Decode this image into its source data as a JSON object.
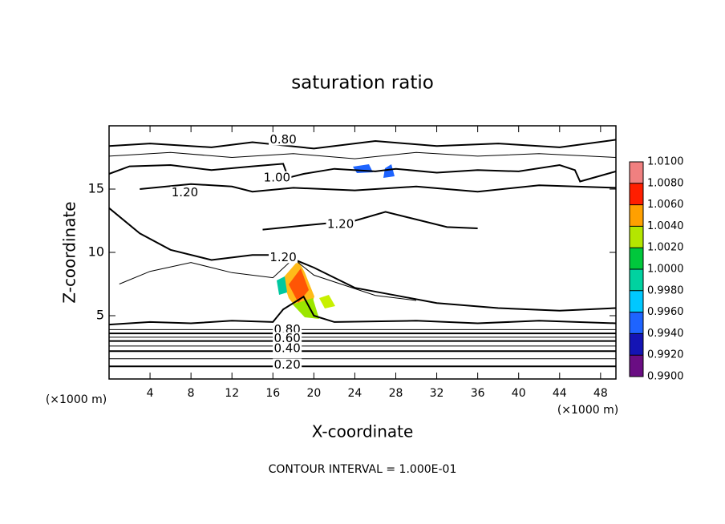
{
  "chart_data": {
    "type": "contour",
    "title": "saturation ratio",
    "x_label": "X-coordinate",
    "y_label": "Z-coordinate",
    "x_unit": "(×1000 m)",
    "footer": "CONTOUR INTERVAL = 1.000E-01",
    "xlim": [
      0,
      49.5
    ],
    "ylim": [
      0,
      20
    ],
    "xticks": [
      4,
      8,
      12,
      16,
      20,
      24,
      28,
      32,
      36,
      40,
      44,
      48
    ],
    "yticks": [
      5,
      10,
      15
    ],
    "contours": [
      {
        "level": 0.2,
        "x": [
          0,
          49.5
        ],
        "y": [
          1.0,
          1.0
        ]
      },
      {
        "level": 0.3,
        "x": [
          0,
          49.5
        ],
        "y": [
          1.6,
          1.6
        ]
      },
      {
        "level": 0.4,
        "x": [
          0,
          49.5
        ],
        "y": [
          2.2,
          2.2
        ]
      },
      {
        "level": 0.5,
        "x": [
          0,
          49.5
        ],
        "y": [
          2.6,
          2.6
        ]
      },
      {
        "level": 0.6,
        "x": [
          0,
          49.5
        ],
        "y": [
          3.0,
          3.0
        ]
      },
      {
        "level": 0.7,
        "x": [
          0,
          49.5
        ],
        "y": [
          3.3,
          3.3
        ]
      },
      {
        "level": 0.8,
        "x": [
          0,
          49.5
        ],
        "y": [
          3.6,
          3.6
        ]
      },
      {
        "level": 0.9,
        "x": [
          0,
          49.5
        ],
        "y": [
          3.9,
          3.9
        ]
      },
      {
        "level": 1.0,
        "x": [
          0,
          4,
          8,
          12,
          16,
          17,
          19,
          20,
          22,
          30,
          36,
          42,
          49.5
        ],
        "y": [
          4.3,
          4.5,
          4.4,
          4.6,
          4.5,
          5.5,
          6.5,
          5,
          4.5,
          4.6,
          4.4,
          4.6,
          4.4
        ]
      },
      {
        "level": 1.0,
        "x": [
          0,
          2,
          6,
          10,
          14,
          17,
          17.5,
          19,
          22,
          26,
          28,
          32,
          36,
          40,
          44,
          45.5,
          46,
          49.5
        ],
        "y": [
          16.2,
          16.8,
          16.9,
          16.5,
          16.8,
          17,
          15.9,
          16.2,
          16.6,
          16.4,
          16.6,
          16.3,
          16.5,
          16.4,
          16.9,
          16.5,
          15.6,
          16.4
        ]
      },
      {
        "level": 0.8,
        "x": [
          0,
          4,
          10,
          14,
          20,
          26,
          32,
          38,
          44,
          49.5
        ],
        "y": [
          18.4,
          18.6,
          18.3,
          18.7,
          18.2,
          18.8,
          18.4,
          18.6,
          18.3,
          18.9
        ]
      },
      {
        "level": 0.9,
        "x": [
          0,
          6,
          12,
          18,
          24,
          30,
          36,
          42,
          49.5
        ],
        "y": [
          17.6,
          17.9,
          17.5,
          17.8,
          17.4,
          17.9,
          17.6,
          17.8,
          17.5
        ]
      },
      {
        "level": 1.2,
        "x": [
          3,
          8,
          12,
          14,
          18,
          24,
          30,
          36,
          42,
          49.5
        ],
        "y": [
          15,
          15.4,
          15.2,
          14.8,
          15.1,
          14.9,
          15.2,
          14.8,
          15.3,
          15.1
        ]
      },
      {
        "level": 1.2,
        "x": [
          15,
          20,
          24,
          27,
          30,
          33,
          36
        ],
        "y": [
          11.8,
          12.2,
          12.5,
          13.2,
          12.6,
          12,
          11.9
        ]
      },
      {
        "level": 1.2,
        "x": [
          0,
          3,
          6,
          10,
          14,
          17,
          20,
          24,
          28,
          32,
          38,
          44,
          49.5
        ],
        "y": [
          13.5,
          11.5,
          10.2,
          9.4,
          9.8,
          9.8,
          8.8,
          7.2,
          6.6,
          6.0,
          5.6,
          5.4,
          5.6
        ]
      },
      {
        "level": 1.1,
        "x": [
          1,
          4,
          8,
          12,
          16,
          18,
          20,
          26,
          30
        ],
        "y": [
          7.5,
          8.5,
          9.2,
          8.4,
          8.0,
          9.5,
          8.2,
          6.6,
          6.2
        ]
      }
    ],
    "contour_labels": [
      {
        "value": 0.8,
        "label": "0.80",
        "x": 17.0,
        "y": 18.9
      },
      {
        "value": 1.0,
        "label": "1.00",
        "x": 16.4,
        "y": 15.9
      },
      {
        "value": 1.2,
        "label": "1.20",
        "x": 7.4,
        "y": 14.7
      },
      {
        "value": 1.2,
        "label": "1.20",
        "x": 22.6,
        "y": 12.2
      },
      {
        "value": 1.2,
        "label": "1.20",
        "x": 17.0,
        "y": 9.6
      },
      {
        "value": 0.8,
        "label": "0.80",
        "x": 17.4,
        "y": 3.9
      },
      {
        "value": 0.6,
        "label": "0.60",
        "x": 17.4,
        "y": 3.2
      },
      {
        "value": 0.4,
        "label": "0.40",
        "x": 17.4,
        "y": 2.4
      },
      {
        "value": 0.2,
        "label": "0.20",
        "x": 17.4,
        "y": 1.1
      }
    ],
    "colorbar": {
      "ticks": [
        {
          "value": 0.99,
          "label": "0.9900"
        },
        {
          "value": 0.992,
          "label": "0.9920"
        },
        {
          "value": 0.994,
          "label": "0.9940"
        },
        {
          "value": 0.996,
          "label": "0.9960"
        },
        {
          "value": 0.998,
          "label": "0.9980"
        },
        {
          "value": 1.0,
          "label": "1.0000"
        },
        {
          "value": 1.002,
          "label": "1.0020"
        },
        {
          "value": 1.004,
          "label": "1.0040"
        },
        {
          "value": 1.006,
          "label": "1.0060"
        },
        {
          "value": 1.008,
          "label": "1.0080"
        },
        {
          "value": 1.01,
          "label": "1.0100"
        }
      ],
      "colors": [
        "#6a0d83",
        "#1414b4",
        "#1e64ff",
        "#00c8ff",
        "#00d2a0",
        "#00c83c",
        "#b4e600",
        "#ffa000",
        "#ff1e00",
        "#f08080"
      ]
    }
  }
}
